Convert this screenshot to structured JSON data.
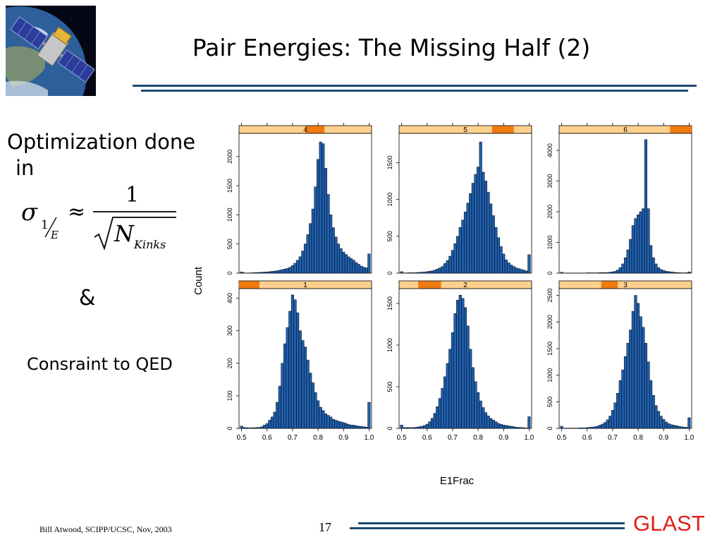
{
  "slide": {
    "title": "Pair Energies: The Missing Half (2)",
    "text_line1": "Optimization done",
    "text_line2": "in",
    "ampersand": "&",
    "constraint": "Consraint to QED",
    "footer_author": "Bill Atwood,  SCIPP/UCSC, Nov, 2003",
    "page_number": "17",
    "brand": "GLAST",
    "colors": {
      "rule": "#1f4a72",
      "brand": "#e0201a",
      "bar": "#1f5fae",
      "strip_bg": "#fdd08e",
      "strip_mark": "#f07b10"
    }
  },
  "formula": {
    "sigma": "σ",
    "one": "1",
    "sub_e": "E",
    "approx": "≈",
    "numerator": "1",
    "n": "N",
    "kinks": "Kinks"
  },
  "chart_data": {
    "type": "bar",
    "xlabel": "E1Frac",
    "ylabel": "Count",
    "x_ticks": [
      0.5,
      0.6,
      0.7,
      0.8,
      0.9,
      1.0
    ],
    "x_tick_labels": [
      "0.5",
      "0.6",
      "0.7",
      "0.8",
      "0.9",
      "1.0"
    ],
    "xlim": [
      0.49,
      1.01
    ],
    "bin_start": 0.495,
    "bin_width": 0.01,
    "panels": [
      {
        "label": "4",
        "ylim": [
          0,
          2300
        ],
        "y_ticks": [
          0,
          500,
          1000,
          1500,
          2000
        ],
        "y_tick_labels": [
          "0",
          "500",
          "1000",
          "1500",
          "2000"
        ],
        "strip_range": [
          0.75,
          0.825
        ],
        "values": [
          20,
          5,
          3,
          4,
          5,
          8,
          10,
          12,
          15,
          18,
          20,
          25,
          30,
          35,
          40,
          50,
          60,
          70,
          80,
          100,
          130,
          170,
          220,
          280,
          380,
          500,
          660,
          850,
          1100,
          1480,
          1950,
          2250,
          2220,
          1800,
          1350,
          1000,
          780,
          620,
          500,
          420,
          360,
          320,
          280,
          250,
          220,
          180,
          150,
          120,
          100,
          90,
          330
        ]
      },
      {
        "label": "5",
        "ylim": [
          0,
          1820
        ],
        "y_ticks": [
          0,
          500,
          1000,
          1500
        ],
        "y_tick_labels": [
          "0",
          "500",
          "1000",
          "1500"
        ],
        "strip_range": [
          0.855,
          0.94
        ],
        "values": [
          20,
          3,
          3,
          5,
          5,
          5,
          8,
          10,
          12,
          15,
          20,
          25,
          30,
          40,
          55,
          70,
          90,
          130,
          170,
          230,
          310,
          400,
          500,
          620,
          720,
          830,
          950,
          1080,
          1220,
          1340,
          1440,
          1780,
          1370,
          1250,
          1100,
          940,
          780,
          620,
          480,
          360,
          260,
          180,
          140,
          110,
          90,
          70,
          60,
          50,
          40,
          30,
          250
        ]
      },
      {
        "label": "6",
        "ylim": [
          0,
          4370
        ],
        "y_ticks": [
          0,
          1000,
          2000,
          3000,
          4000
        ],
        "y_tick_labels": [
          "0",
          "1000",
          "2000",
          "3000",
          "4000"
        ],
        "strip_range": [
          0.925,
          1.01
        ],
        "values": [
          30,
          5,
          5,
          5,
          5,
          5,
          5,
          5,
          5,
          5,
          10,
          10,
          10,
          10,
          10,
          15,
          15,
          20,
          20,
          30,
          40,
          60,
          100,
          180,
          300,
          500,
          760,
          1100,
          1550,
          1780,
          1900,
          2000,
          2100,
          4350,
          2100,
          900,
          500,
          300,
          180,
          120,
          90,
          60,
          50,
          40,
          30,
          20,
          15,
          10,
          10,
          10,
          40
        ]
      },
      {
        "label": "1",
        "ylim": [
          0,
          412
        ],
        "y_ticks": [
          0,
          100,
          200,
          300,
          400
        ],
        "y_tick_labels": [
          "0",
          "100",
          "200",
          "300",
          "400"
        ],
        "strip_range": [
          0.49,
          0.57
        ],
        "values": [
          7,
          3,
          2,
          2,
          2,
          2,
          3,
          3,
          5,
          10,
          15,
          25,
          35,
          50,
          80,
          130,
          200,
          260,
          310,
          360,
          410,
          395,
          355,
          300,
          270,
          250,
          210,
          170,
          140,
          110,
          85,
          65,
          55,
          45,
          40,
          35,
          28,
          25,
          22,
          20,
          18,
          15,
          12,
          10,
          10,
          8,
          7,
          6,
          5,
          4,
          80
        ]
      },
      {
        "label": "2",
        "ylim": [
          0,
          1610
        ],
        "y_ticks": [
          0,
          500,
          1000,
          1500
        ],
        "y_tick_labels": [
          "0",
          "500",
          "1000",
          "1500"
        ],
        "strip_range": [
          0.565,
          0.655
        ],
        "values": [
          40,
          10,
          10,
          10,
          10,
          10,
          15,
          20,
          25,
          35,
          50,
          80,
          120,
          180,
          260,
          360,
          480,
          620,
          780,
          950,
          1150,
          1380,
          1540,
          1600,
          1560,
          1450,
          1230,
          950,
          730,
          560,
          430,
          330,
          250,
          190,
          150,
          120,
          100,
          80,
          60,
          50,
          40,
          35,
          30,
          25,
          20,
          15,
          12,
          10,
          8,
          5,
          140
        ]
      },
      {
        "label": "3",
        "ylim": [
          0,
          2520
        ],
        "y_ticks": [
          0,
          500,
          1000,
          1500,
          2000,
          2500
        ],
        "y_tick_labels": [
          "0",
          "500",
          "1000",
          "1500",
          "2000",
          "2500"
        ],
        "strip_range": [
          0.655,
          0.72
        ],
        "values": [
          40,
          5,
          5,
          5,
          5,
          5,
          5,
          10,
          10,
          10,
          15,
          20,
          25,
          30,
          40,
          60,
          80,
          110,
          160,
          230,
          340,
          480,
          660,
          900,
          1100,
          1350,
          1600,
          1850,
          2200,
          2500,
          2350,
          2100,
          1900,
          1600,
          1250,
          900,
          620,
          430,
          320,
          230,
          170,
          120,
          90,
          70,
          60,
          50,
          40,
          30,
          25,
          20,
          200
        ]
      }
    ]
  }
}
